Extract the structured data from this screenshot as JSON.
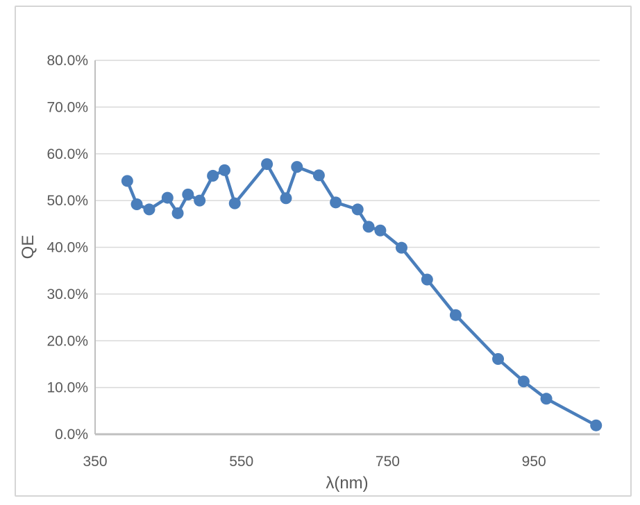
{
  "chart_data": {
    "type": "line",
    "title": "",
    "xlabel": "λ(nm)",
    "ylabel": "QE",
    "x": [
      394,
      407,
      424,
      449,
      463,
      477,
      493,
      511,
      527,
      541,
      585,
      611,
      626,
      656,
      679,
      709,
      724,
      740,
      769,
      804,
      843,
      901,
      936,
      967,
      1035
    ],
    "series": [
      {
        "name": "QE",
        "values_percent": [
          54.2,
          49.2,
          48.1,
          50.6,
          47.3,
          51.3,
          50.0,
          55.3,
          56.5,
          49.4,
          57.8,
          50.5,
          57.2,
          55.4,
          49.6,
          48.1,
          44.4,
          43.6,
          39.9,
          33.1,
          25.5,
          16.1,
          11.3,
          7.6,
          1.9
        ]
      }
    ],
    "xlim": [
      350,
      1040
    ],
    "ylim_percent": [
      0,
      80
    ],
    "x_ticks": [
      350,
      550,
      750,
      950
    ],
    "x_tick_labels": [
      "350",
      "550",
      "750",
      "950"
    ],
    "y_ticks_percent": [
      0,
      10,
      20,
      30,
      40,
      50,
      60,
      70,
      80
    ],
    "y_tick_labels": [
      "0.0%",
      "10.0%",
      "20.0%",
      "30.0%",
      "40.0%",
      "50.0%",
      "60.0%",
      "70.0%",
      "80.0%"
    ],
    "grid": "horizontal",
    "legend": "none",
    "marker": "circle",
    "colors": {
      "line": "#4A7EBB",
      "marker": "#4A7EBB",
      "gridline": "#D9D9D9",
      "axis": "#BFBFBF",
      "label": "#595959",
      "frame_border": "#D5D5D5"
    }
  }
}
